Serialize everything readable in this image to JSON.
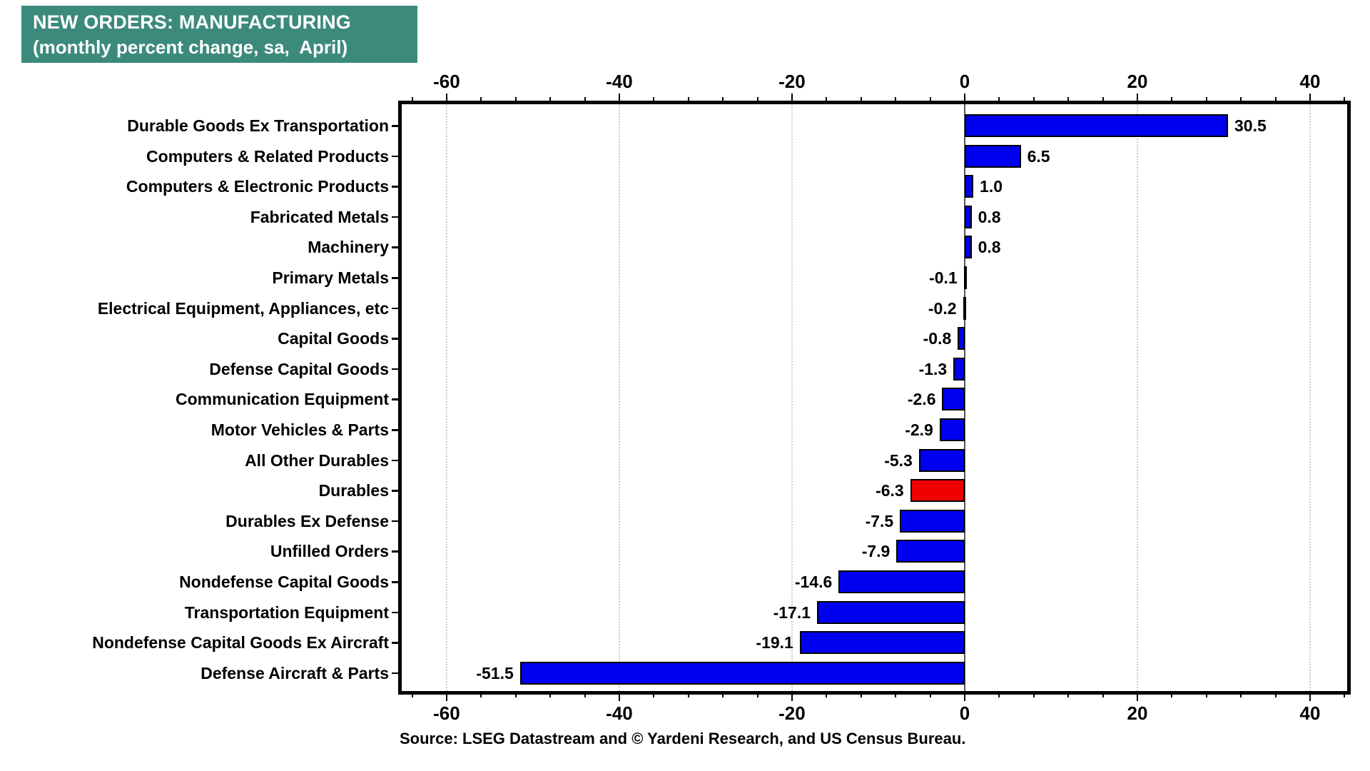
{
  "title": {
    "line1": "NEW ORDERS: MANUFACTURING",
    "line2": "(monthly percent change, sa,  April)"
  },
  "source": "Source: LSEG Datastream and © Yardeni Research, and US Census Bureau.",
  "colors": {
    "title_bg": "#3C8A7B",
    "title_text": "#FFFFFF",
    "bar_default": "#0000F0",
    "bar_highlight": "#F00000",
    "bar_border": "#000000",
    "grid": "#CCCCCC",
    "zero_line": "#555555",
    "axis": "#000000"
  },
  "chart_data": {
    "type": "bar",
    "orientation": "horizontal",
    "title": "NEW ORDERS: MANUFACTURING",
    "subtitle": "(monthly percent change, sa, April)",
    "xlabel": "monthly percent change",
    "ylabel": "",
    "categories": [
      "Durable Goods Ex Transportation",
      "Computers & Related Products",
      "Computers & Electronic Products",
      "Fabricated Metals",
      "Machinery",
      "Primary Metals",
      "Electrical Equipment, Appliances, etc",
      "Capital Goods",
      "Defense Capital Goods",
      "Communication Equipment",
      "Motor Vehicles & Parts",
      "All Other Durables",
      "Durables",
      "Durables Ex Defense",
      "Unfilled Orders",
      "Nondefense Capital Goods",
      "Transportation Equipment",
      "Nondefense Capital Goods Ex Aircraft",
      "Defense Aircraft & Parts"
    ],
    "values": [
      30.5,
      6.5,
      1.0,
      0.8,
      0.8,
      -0.1,
      -0.2,
      -0.8,
      -1.3,
      -2.6,
      -2.9,
      -5.3,
      -6.3,
      -7.5,
      -7.9,
      -14.6,
      -17.1,
      -19.1,
      -51.5
    ],
    "value_labels": [
      "30.5",
      "6.5",
      "1.0",
      "0.8",
      "0.8",
      "-0.1",
      "-0.2",
      "-0.8",
      "-1.3",
      "-2.6",
      "-2.9",
      "-5.3",
      "-6.3",
      "-7.5",
      "-7.9",
      "-14.6",
      "-17.1",
      "-19.1",
      "-51.5"
    ],
    "highlight": {
      "category": "Durables",
      "index": 12
    },
    "xlim": [
      -65.2,
      44.3
    ],
    "xticks": [
      -60,
      -40,
      -20,
      0,
      20,
      40
    ],
    "xtick_labels": [
      "-60",
      "-40",
      "-20",
      "0",
      "20",
      "40"
    ],
    "minor_tick_step": 4,
    "grid": "dotted vertical lines at major ticks, solid line at zero",
    "legend": "none",
    "axis_label_positions": "top and bottom"
  }
}
